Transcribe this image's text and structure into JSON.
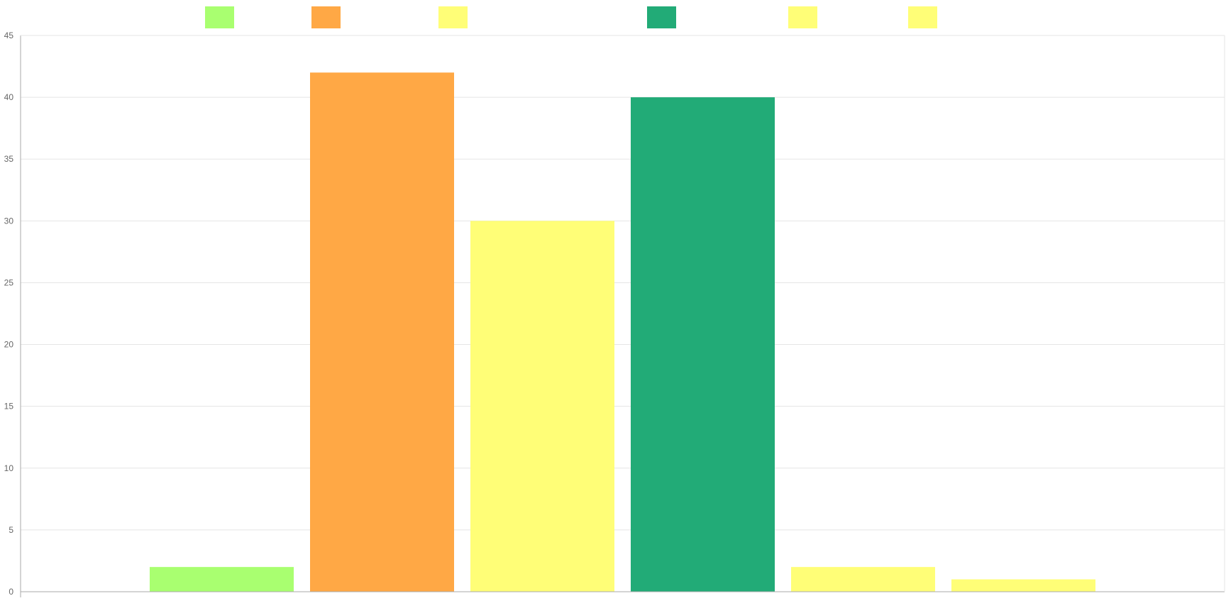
{
  "chart_data": {
    "type": "bar",
    "categories": [
      "",
      "",
      "",
      "",
      "",
      ""
    ],
    "values": [
      2,
      42,
      30,
      40,
      2,
      1
    ],
    "colors": [
      "#a9ff70",
      "#ffa845",
      "#fffe77",
      "#22ab77",
      "#fffe77",
      "#fffe77"
    ],
    "legend_colors": [
      "#a9ff70",
      "#ffa845",
      "#fffe77",
      "#22ab77",
      "#fffe77",
      "#fffe77"
    ],
    "legend_labels": [
      "",
      "",
      "",
      "",
      "",
      ""
    ],
    "legend_position": "top",
    "title": "",
    "xlabel": "",
    "ylabel": "",
    "ylim": [
      0,
      45
    ],
    "y_ticks": [
      0,
      5,
      10,
      15,
      20,
      25,
      30,
      35,
      40,
      45
    ],
    "grid": true,
    "gridline_color": "#e5e5e5",
    "axis_color": "#aaaaaa"
  }
}
